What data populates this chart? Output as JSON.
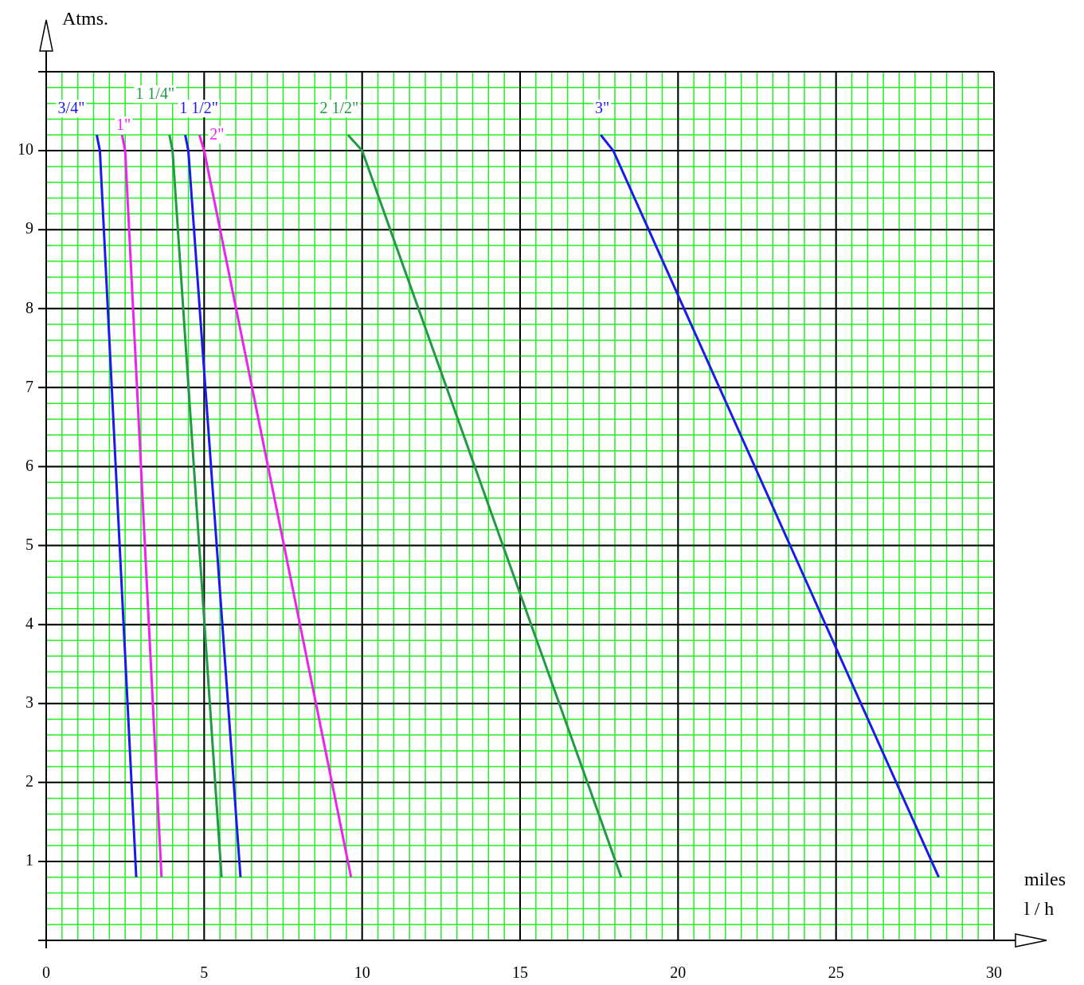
{
  "chart_data": {
    "type": "line",
    "xlabel": "miles\nl / h",
    "ylabel": "Atms.",
    "xlim": [
      0,
      30
    ],
    "xticks": [
      0,
      5,
      10,
      15,
      20,
      25,
      30
    ],
    "ylim": [
      0,
      11
    ],
    "yticks": [
      1,
      2,
      3,
      4,
      5,
      6,
      7,
      8,
      9,
      10
    ],
    "grid": true,
    "legend": false,
    "marker": "none",
    "line_style": "solid",
    "series": [
      {
        "name": "3/4\"",
        "color": "#1a1aee",
        "x": [
          1.6,
          1.7,
          2.85
        ],
        "values": [
          10.2,
          10,
          0.8
        ]
      },
      {
        "name": "1\"",
        "color": "#ee22ee",
        "x": [
          2.4,
          2.5,
          3.65
        ],
        "values": [
          10.2,
          10,
          0.8
        ]
      },
      {
        "name": "1 1/4\"",
        "color": "#229944",
        "x": [
          3.9,
          4.0,
          5.55
        ],
        "values": [
          10.2,
          10,
          0.8
        ]
      },
      {
        "name": "1 1/2\"",
        "color": "#1a1aee",
        "x": [
          4.4,
          4.5,
          6.15
        ],
        "values": [
          10.2,
          10,
          0.8
        ]
      },
      {
        "name": "2\"",
        "color": "#ee22ee",
        "x": [
          4.85,
          5.0,
          9.65
        ],
        "values": [
          10.2,
          10,
          0.8
        ]
      },
      {
        "name": "2 1/2\"",
        "color": "#229944",
        "x": [
          9.55,
          10.0,
          18.2
        ],
        "values": [
          10.2,
          10,
          0.8
        ]
      },
      {
        "name": "3\"",
        "color": "#1a1aee",
        "x": [
          17.55,
          17.95,
          28.25
        ],
        "values": [
          10.2,
          10,
          0.8
        ]
      }
    ]
  }
}
